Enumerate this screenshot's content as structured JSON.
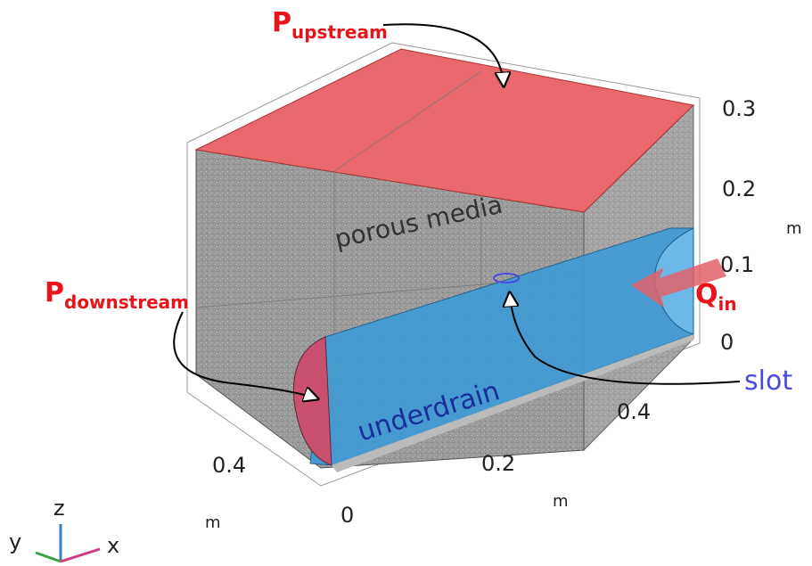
{
  "labels": {
    "p_upstream": {
      "symbol": "P",
      "subscript": "upstream"
    },
    "p_downstream": {
      "symbol": "P",
      "subscript": "downstream"
    },
    "q_in": {
      "symbol": "Q",
      "subscript": "in"
    },
    "slot": "slot"
  },
  "regions": {
    "porous_media": "porous media",
    "underdrain": "underdrain"
  },
  "axes": {
    "z": {
      "ticks": [
        0.3,
        0.2,
        0.1,
        0
      ],
      "unit": "m"
    },
    "x": {
      "ticks": [
        0.4,
        0.2,
        0
      ],
      "unit": "m"
    },
    "y": {
      "ticks": [
        0.4
      ],
      "unit": "m"
    }
  },
  "triad": {
    "z": "z",
    "y": "y",
    "x": "x"
  }
}
